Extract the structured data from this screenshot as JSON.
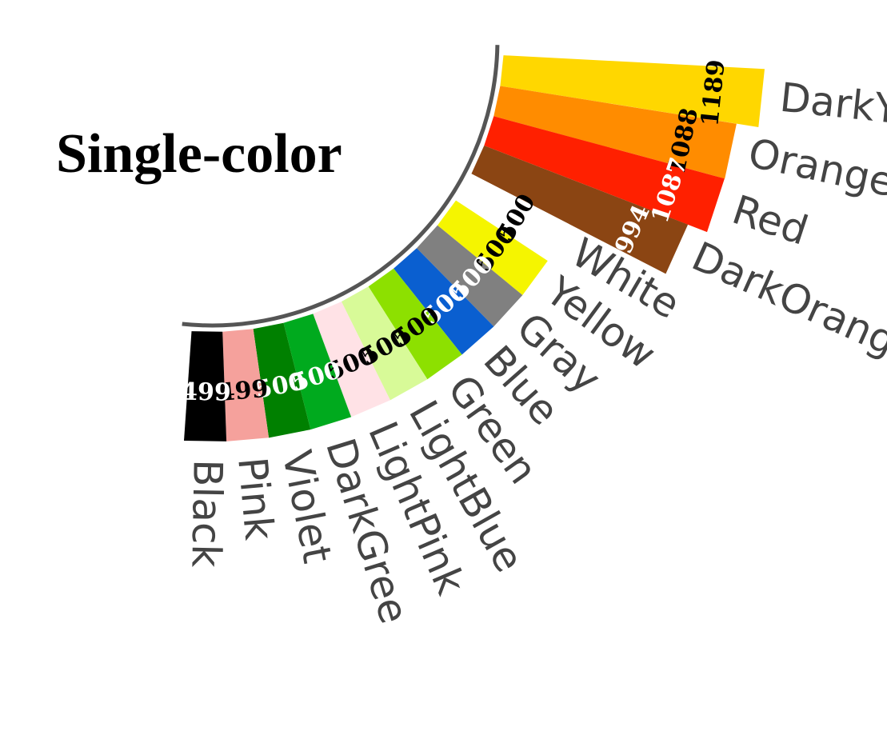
{
  "chart_data": {
    "type": "bar",
    "layout": "radial-arc",
    "title": "Single-color",
    "xlabel": "",
    "ylabel": "",
    "categories": [
      "DarkYe",
      "Orange",
      "Red",
      "DarkOrang",
      "White",
      "Yellow",
      "Gray",
      "Blue",
      "Green",
      "LightBlue",
      "LightPink",
      "DarkGree",
      "Violet",
      "Pink",
      "Black"
    ],
    "values": [
      1189,
      1088,
      1087,
      994,
      500,
      500,
      500,
      500,
      500,
      500,
      500,
      500,
      500,
      499,
      499
    ],
    "colors": [
      "#FFD700",
      "#FF8C00",
      "#FF2000",
      "#8B4513",
      "#FFFFFF",
      "#F5F500",
      "#808080",
      "#0A5FD0",
      "#8DE000",
      "#D8FA98",
      "#FFE2E6",
      "#00AA1E",
      "#008000",
      "#F5A19C",
      "#000000"
    ],
    "label_colors": [
      "#000000",
      "#000000",
      "#FFFFFF",
      "#FFFFFF",
      "#000000",
      "#000000",
      "#FFFFFF",
      "#FFFFFF",
      "#000000",
      "#000000",
      "#000000",
      "#FFFFFF",
      "#FFFFFF",
      "#000000",
      "#FFFFFF"
    ],
    "grid": false,
    "legend": "none"
  }
}
